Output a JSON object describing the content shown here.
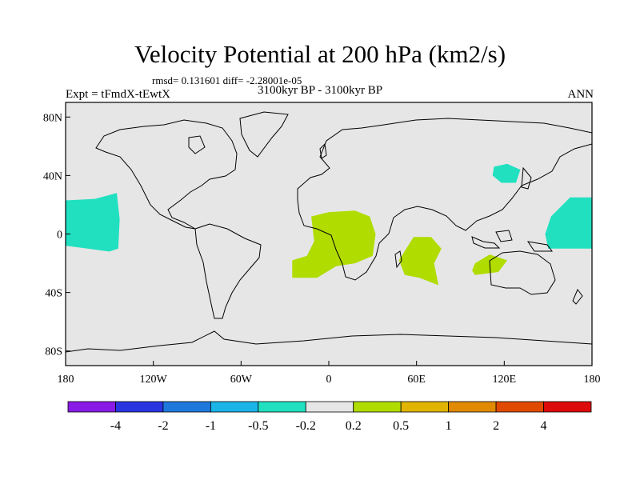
{
  "header": {
    "title": "Velocity Potential at 200 hPa (km2/s)",
    "stats": "rmsd= 0.131601 diff= -2.28001e-05",
    "expt": "Expt = tFmdX-tEwtX",
    "period": "3100kyr BP - 3100kyr BP",
    "season": "ANN"
  },
  "map": {
    "lon_range": [
      -180,
      180
    ],
    "lat_range": [
      -90,
      90
    ],
    "lat_ticks": [
      {
        "value": 80,
        "label": "80N"
      },
      {
        "value": 40,
        "label": "40N"
      },
      {
        "value": 0,
        "label": "0"
      },
      {
        "value": -40,
        "label": "40S"
      },
      {
        "value": -80,
        "label": "80S"
      }
    ],
    "lon_ticks": [
      {
        "value": -180,
        "label": "180"
      },
      {
        "value": -120,
        "label": "120W"
      },
      {
        "value": -60,
        "label": "60W"
      },
      {
        "value": 0,
        "label": "0"
      },
      {
        "value": 60,
        "label": "60E"
      },
      {
        "value": 120,
        "label": "120E"
      },
      {
        "value": 180,
        "label": "180"
      }
    ],
    "background_color": "#e6e6e6",
    "regions": [
      {
        "name": "central-pacific-west-edge",
        "color": "#20e0c0",
        "level": "-0.5 to -0.2",
        "points": [
          [
            -180,
            23
          ],
          [
            -160,
            24
          ],
          [
            -145,
            28
          ],
          [
            -143,
            10
          ],
          [
            -144,
            -10
          ],
          [
            -150,
            -12
          ],
          [
            -165,
            -10
          ],
          [
            -180,
            -8
          ]
        ]
      },
      {
        "name": "west-pacific",
        "color": "#20e0c0",
        "level": "-0.5 to -0.2",
        "points": [
          [
            180,
            25
          ],
          [
            165,
            25
          ],
          [
            152,
            12
          ],
          [
            148,
            0
          ],
          [
            150,
            -10
          ],
          [
            162,
            -10
          ],
          [
            180,
            -10
          ]
        ]
      },
      {
        "name": "east-asia",
        "color": "#20e0c0",
        "level": "-0.5 to -0.2",
        "points": [
          [
            113,
            46
          ],
          [
            122,
            48
          ],
          [
            131,
            44
          ],
          [
            128,
            35
          ],
          [
            118,
            35
          ],
          [
            112,
            40
          ]
        ]
      },
      {
        "name": "atlantic-africa",
        "color": "#b0dc00",
        "level": "0.2 to 0.5",
        "points": [
          [
            -12,
            12
          ],
          [
            0,
            15
          ],
          [
            18,
            16
          ],
          [
            28,
            12
          ],
          [
            32,
            0
          ],
          [
            30,
            -15
          ],
          [
            18,
            -20
          ],
          [
            5,
            -22
          ],
          [
            -8,
            -30
          ],
          [
            -25,
            -30
          ],
          [
            -25,
            -18
          ],
          [
            -15,
            -15
          ],
          [
            -10,
            -5
          ]
        ]
      },
      {
        "name": "indian-ocean",
        "color": "#b0dc00",
        "level": "0.2 to 0.5",
        "points": [
          [
            48,
            -18
          ],
          [
            58,
            -2
          ],
          [
            70,
            -2
          ],
          [
            77,
            -10
          ],
          [
            72,
            -20
          ],
          [
            75,
            -35
          ],
          [
            62,
            -30
          ],
          [
            52,
            -28
          ]
        ]
      },
      {
        "name": "australia-west",
        "color": "#b0dc00",
        "level": "0.2 to 0.5",
        "points": [
          [
            100,
            -20
          ],
          [
            110,
            -14
          ],
          [
            122,
            -18
          ],
          [
            116,
            -26
          ],
          [
            100,
            -28
          ],
          [
            98,
            -25
          ]
        ]
      }
    ]
  },
  "colorbar": {
    "colors": [
      "#8a1ae6",
      "#2a35e0",
      "#1e78dc",
      "#1ab4e6",
      "#20e0c0",
      "#e6e6e6",
      "#b0dc00",
      "#e0b400",
      "#e08a00",
      "#e04a00",
      "#dc0a0a"
    ],
    "labels": [
      "-4",
      "-2",
      "-1",
      "-0.5",
      "-0.2",
      "0.2",
      "0.5",
      "1",
      "2",
      "4"
    ]
  }
}
